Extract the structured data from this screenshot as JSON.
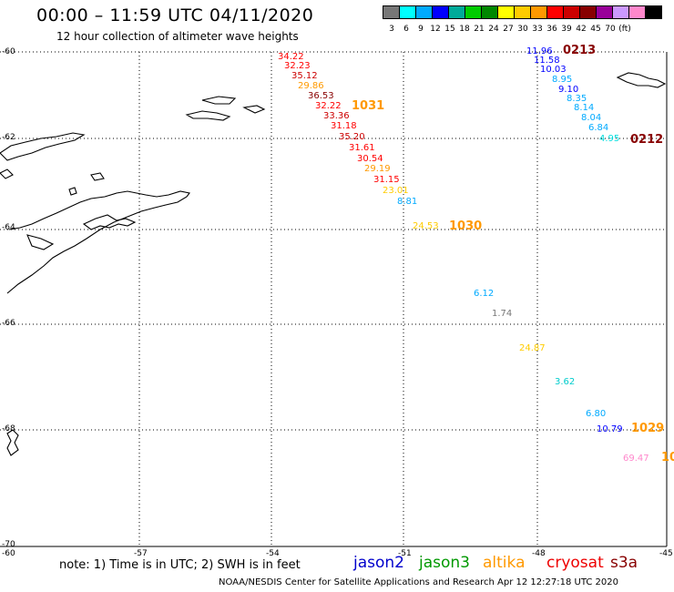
{
  "title": "00:00 – 11:59 UTC 04/11/2020",
  "subtitle": "12 hour collection of altimeter wave heights",
  "scale": {
    "colors": [
      "#777777",
      "#00ffff",
      "#00aaff",
      "#0000ff",
      "#00aa99",
      "#00cc00",
      "#008800",
      "#ffff00",
      "#ffcc00",
      "#ff9900",
      "#ff0000",
      "#cc0000",
      "#880000",
      "#990099",
      "#cc99ff",
      "#ff88cc",
      "#000000"
    ],
    "labels": [
      "3",
      "6",
      "9",
      "12",
      "15",
      "18",
      "21",
      "24",
      "27",
      "30",
      "33",
      "36",
      "39",
      "42",
      "45",
      "70",
      "(ft)"
    ]
  },
  "axes": {
    "lat_labels": [
      "-60",
      "-62",
      "-64",
      "-66",
      "-68",
      "-70"
    ],
    "lon_labels": [
      "-60",
      "-57",
      "-54",
      "-51",
      "-48",
      "-45"
    ]
  },
  "points": [
    {
      "v": "34.22",
      "c": "#ff0000"
    },
    {
      "v": "32.23",
      "c": "#ff0000"
    },
    {
      "v": "35.12",
      "c": "#cc0000"
    },
    {
      "v": "29.86",
      "c": "#ff9900"
    },
    {
      "v": "36.53",
      "c": "#880000"
    },
    {
      "v": "32.22",
      "c": "#ff0000"
    },
    {
      "v": "33.36",
      "c": "#cc0000"
    },
    {
      "v": "31.18",
      "c": "#ff0000"
    },
    {
      "v": "35.20",
      "c": "#cc0000"
    },
    {
      "v": "31.61",
      "c": "#ff0000"
    },
    {
      "v": "30.54",
      "c": "#ff0000"
    },
    {
      "v": "29.19",
      "c": "#ff9900"
    },
    {
      "v": "31.15",
      "c": "#ff0000"
    },
    {
      "v": "23.01",
      "c": "#ffcc00"
    },
    {
      "v": "8.81",
      "c": "#00aaff"
    },
    {
      "v": "24.53",
      "c": "#ffcc00"
    },
    {
      "v": "11.96",
      "c": "#0000ff"
    },
    {
      "v": "11.58",
      "c": "#0000ff"
    },
    {
      "v": "10.03",
      "c": "#0000ff"
    },
    {
      "v": "8.95",
      "c": "#00aaff"
    },
    {
      "v": "9.10",
      "c": "#0000ff"
    },
    {
      "v": "8.35",
      "c": "#00aaff"
    },
    {
      "v": "8.14",
      "c": "#00aaff"
    },
    {
      "v": "8.04",
      "c": "#00aaff"
    },
    {
      "v": "6.84",
      "c": "#00aaff"
    },
    {
      "v": "4.95",
      "c": "#00dddd"
    },
    {
      "v": "6.12",
      "c": "#00aaff"
    },
    {
      "v": "1.74",
      "c": "#777777"
    },
    {
      "v": "24.87",
      "c": "#ffcc00"
    },
    {
      "v": "3.62",
      "c": "#00cccc"
    },
    {
      "v": "6.80",
      "c": "#00aaff"
    },
    {
      "v": "10.79",
      "c": "#0000ff"
    },
    {
      "v": "69.47",
      "c": "#ff88cc"
    }
  ],
  "passes": [
    {
      "t": "0213",
      "c": "#880000"
    },
    {
      "t": "1031",
      "c": "#ff9900"
    },
    {
      "t": "0212",
      "c": "#880000"
    },
    {
      "t": "1030",
      "c": "#ff9900"
    },
    {
      "t": "1029",
      "c": "#ff9900"
    },
    {
      "t": "10",
      "c": "#ff9900"
    }
  ],
  "note": "note: 1) Time is in UTC; 2) SWH is in feet",
  "satellites": [
    {
      "name": "jason2",
      "color": "#0000cc"
    },
    {
      "name": "jason3",
      "color": "#009900"
    },
    {
      "name": "altika",
      "color": "#ff9900"
    },
    {
      "name": "cryosat",
      "color": "#ee0000"
    },
    {
      "name": "s3a",
      "color": "#880000"
    }
  ],
  "credit": "NOAA/NESDIS Center for Satellite Applications and Research    Apr 12 12:27:18 UTC 2020"
}
